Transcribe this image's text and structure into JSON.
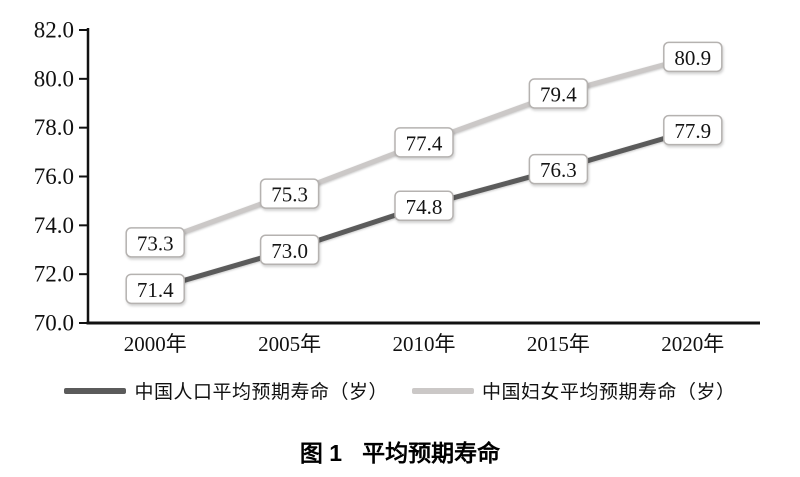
{
  "figure": {
    "caption_label": "图 1",
    "caption_title": "平均预期寿命"
  },
  "chart_data": {
    "type": "line",
    "title": "图 1 平均预期寿命",
    "categories": [
      "2000年",
      "2005年",
      "2010年",
      "2015年",
      "2020年"
    ],
    "series": [
      {
        "name": "中国人口平均预期寿命（岁）",
        "values": [
          71.4,
          73.0,
          74.8,
          76.3,
          77.9
        ],
        "color": "#5b5b5b"
      },
      {
        "name": "中国妇女平均预期寿命（岁）",
        "values": [
          73.3,
          75.3,
          77.4,
          79.4,
          80.9
        ],
        "color": "#cbc8c7"
      }
    ],
    "xlabel": "",
    "ylabel": "",
    "ylim": [
      70.0,
      82.0
    ],
    "ytick_step": 2.0,
    "ytick_labels": [
      "70.0",
      "72.0",
      "74.0",
      "76.0",
      "78.0",
      "80.0",
      "82.0"
    ],
    "data_labels": true,
    "data_label_box": {
      "fill": "#ffffff",
      "border": "#b5b2b0"
    },
    "axis_color": "#111111",
    "grid": false,
    "legend_position": "bottom"
  }
}
